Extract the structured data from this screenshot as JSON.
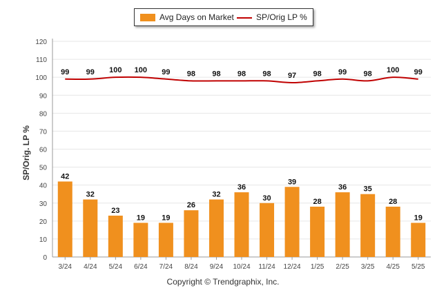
{
  "chart_data": {
    "type": "bar",
    "categories": [
      "3/24",
      "4/24",
      "5/24",
      "6/24",
      "7/24",
      "8/24",
      "9/24",
      "10/24",
      "11/24",
      "12/24",
      "1/25",
      "2/25",
      "3/25",
      "4/25",
      "5/25"
    ],
    "series": [
      {
        "name": "Avg Days on Market",
        "type": "bar",
        "values": [
          42,
          32,
          23,
          19,
          19,
          26,
          32,
          36,
          30,
          39,
          28,
          36,
          35,
          28,
          19
        ]
      },
      {
        "name": "SP/Orig LP %",
        "type": "line",
        "values": [
          99,
          99,
          100,
          100,
          99,
          98,
          98,
          98,
          98,
          97,
          98,
          99,
          98,
          100,
          99
        ]
      }
    ],
    "ylabel": "SP/Orig. LP %",
    "ylim": [
      0,
      120
    ],
    "yticks": [
      0,
      10,
      20,
      30,
      40,
      50,
      60,
      70,
      80,
      90,
      100,
      110,
      120
    ],
    "grid": true,
    "legend_position": "top-center"
  },
  "colors": {
    "bar": "#f0901e",
    "line": "#c00000",
    "grid": "#e6e6e6",
    "axis": "#999999"
  },
  "footer": {
    "copyright": "Copyright © Trendgraphix, Inc."
  }
}
